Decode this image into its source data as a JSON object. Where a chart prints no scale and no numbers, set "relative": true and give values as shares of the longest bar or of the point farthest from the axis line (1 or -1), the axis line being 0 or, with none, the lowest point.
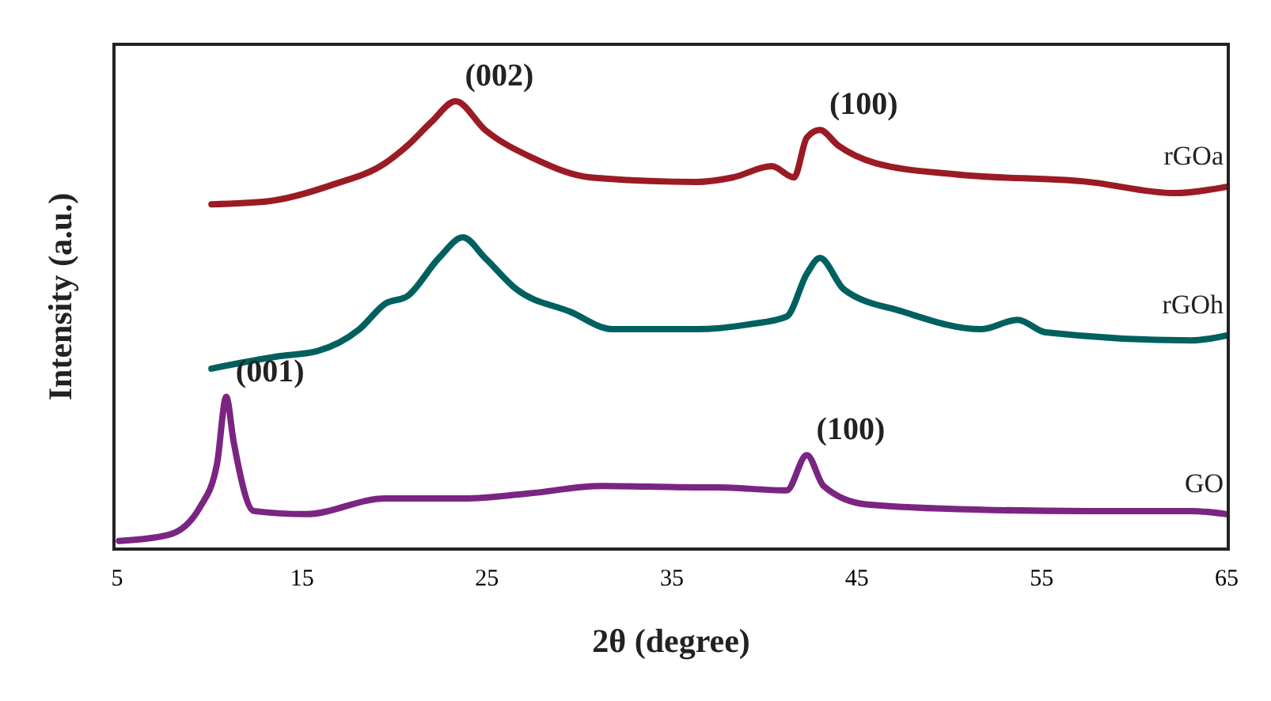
{
  "chart_data": {
    "type": "line",
    "relative": true,
    "xlabel": "2θ (degree)",
    "ylabel": "Intensity (a.u.)",
    "xlim": [
      5,
      65
    ],
    "xticks": [
      5,
      15,
      25,
      35,
      45,
      55,
      65
    ],
    "tick_labels": "x",
    "grid": false,
    "legend": false,
    "marker": "none",
    "line_style": "solid",
    "series": [
      {
        "name": "rGOa",
        "color": "#9b1b24",
        "x": [
          10.1,
          13.2,
          16.6,
          19.5,
          20.7,
          22.0,
          23.3,
          24.9,
          27.5,
          30.6,
          36.3,
          38.3,
          40.4,
          41.6,
          42.3,
          43.0,
          44.0,
          46.0,
          50.3,
          57.5,
          62.2,
          65.0
        ],
        "values": [
          0.77,
          0.777,
          0.813,
          0.862,
          0.901,
          0.954,
          1.0,
          0.936,
          0.873,
          0.83,
          0.82,
          0.83,
          0.855,
          0.83,
          0.919,
          0.936,
          0.901,
          0.862,
          0.837,
          0.82,
          0.795,
          0.809
        ]
      },
      {
        "name": "rGOh",
        "color": "#006060",
        "x": [
          10.1,
          13.8,
          15.8,
          18.1,
          19.5,
          20.7,
          22.4,
          23.7,
          24.9,
          26.6,
          29.5,
          31.8,
          36.3,
          39.2,
          41.2,
          42.3,
          43.0,
          44.3,
          47.5,
          51.7,
          53.7,
          55.2,
          63.1,
          65.0
        ],
        "values": [
          0.403,
          0.431,
          0.442,
          0.491,
          0.548,
          0.565,
          0.65,
          0.696,
          0.65,
          0.58,
          0.53,
          0.491,
          0.491,
          0.502,
          0.519,
          0.615,
          0.65,
          0.58,
          0.53,
          0.491,
          0.512,
          0.484,
          0.466,
          0.477
        ]
      },
      {
        "name": "GO",
        "color": "#7b2582",
        "x": [
          5.1,
          7.8,
          9.5,
          10.4,
          10.9,
          11.3,
          12.4,
          15.2,
          19.5,
          23.8,
          27.2,
          31.2,
          36.3,
          37.4,
          41.2,
          42.3,
          43.2,
          45.5,
          51.7,
          57.5,
          63.1,
          65.0
        ],
        "values": [
          0.018,
          0.032,
          0.095,
          0.19,
          0.34,
          0.24,
          0.085,
          0.078,
          0.113,
          0.113,
          0.124,
          0.141,
          0.138,
          0.138,
          0.131,
          0.21,
          0.141,
          0.1,
          0.088,
          0.085,
          0.085,
          0.078
        ]
      }
    ],
    "annotations": [
      {
        "text": "(002)",
        "x": 23.3,
        "y": 1.0
      },
      {
        "text": "(100)",
        "x": 43.0,
        "y": 0.936
      },
      {
        "text": "(001)",
        "x": 10.9,
        "y": 0.34
      },
      {
        "text": "(100)",
        "x": 42.3,
        "y": 0.21
      }
    ]
  }
}
